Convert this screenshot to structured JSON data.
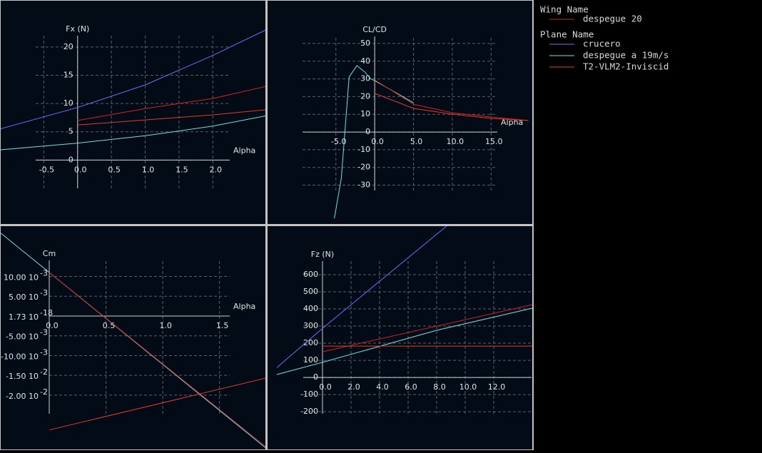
{
  "legend": {
    "groups": [
      {
        "title": "Wing Name",
        "items": [
          {
            "name": "despegue 20",
            "color": "#d42020"
          }
        ]
      },
      {
        "title": "Plane Name",
        "items": [
          {
            "name": "crucero",
            "color": "#6f6fff"
          },
          {
            "name": "despegue a 19m/s",
            "color": "#6fe2e2"
          },
          {
            "name": "T2-VLM2-Inviscid",
            "color": "#e33a2a"
          }
        ]
      }
    ]
  },
  "chart_data": [
    {
      "type": "line",
      "ylabel": "Fx (N)",
      "xlabel": "Alpha",
      "xlim": [
        -0.62,
        2.25
      ],
      "ylim": [
        -5,
        22
      ],
      "xticks": [
        -0.5,
        {
          "value": 0,
          "label": "0.0"
        },
        0.5,
        {
          "value": 1,
          "label": "1.0"
        },
        1.5,
        {
          "value": 2,
          "label": "2.0"
        }
      ],
      "yticks": [
        0,
        5,
        10,
        15,
        20
      ],
      "grid": true,
      "series": [
        {
          "color": "#6f6fff",
          "x": [
            -1.15,
            0,
            1,
            2,
            2.78
          ],
          "values": [
            5.5,
            9.3,
            13.3,
            18.5,
            23
          ]
        },
        {
          "color": "#6fe2e2",
          "x": [
            -1.15,
            0,
            1,
            2,
            2.78
          ],
          "values": [
            1.8,
            3.0,
            4.3,
            6.0,
            7.8
          ]
        },
        {
          "color": "#d42020",
          "x": [
            0,
            1,
            2,
            2.78
          ],
          "values": [
            7.0,
            9.1,
            10.9,
            13.0
          ]
        },
        {
          "color": "#e33a2a",
          "x": [
            0,
            2,
            2.78
          ],
          "values": [
            6.2,
            8.0,
            8.9
          ]
        }
      ]
    },
    {
      "type": "line",
      "ylabel": "CL/CD",
      "xlabel": "Alpha",
      "xlim": [
        -9.3,
        15.8
      ],
      "ylim": [
        -33,
        54
      ],
      "xticks": [
        {
          "value": -5,
          "label": "-5.0"
        },
        {
          "value": 0,
          "label": "0.0"
        },
        {
          "value": 5,
          "label": "5.0"
        },
        {
          "value": 10,
          "label": "10.0"
        },
        {
          "value": 15,
          "label": "15.0"
        }
      ],
      "yticks": [
        -30,
        -20,
        -10,
        0,
        10,
        20,
        30,
        40,
        50
      ],
      "grid": true,
      "series": [
        {
          "color": "#6fe2e2",
          "x": [
            -5.2,
            -4.3,
            -3.3,
            -2.3,
            -1.3,
            -0.5,
            0,
            5
          ],
          "values": [
            -48.8,
            -26,
            31,
            37.5,
            34,
            30,
            29,
            16.5
          ]
        },
        {
          "color": "#d42020",
          "x": [
            0,
            5,
            10,
            15,
            19.8
          ],
          "values": [
            29.4,
            15.7,
            10.9,
            8.5,
            6.5
          ]
        },
        {
          "color": "#e33a2a",
          "x": [
            0,
            5,
            10,
            15,
            19.8
          ],
          "values": [
            21.8,
            13.3,
            10.1,
            7.7,
            6.5
          ]
        }
      ]
    },
    {
      "type": "line",
      "ylabel": "Cm",
      "xlabel": "Alpha",
      "xlim": [
        0,
        1.59
      ],
      "ylim": [
        -0.0247,
        0.01405
      ],
      "xticks": [
        {
          "value": 0,
          "label": "0.0"
        },
        0.5,
        {
          "value": 1,
          "label": "1.0"
        },
        1.5
      ],
      "yticks": [
        {
          "value": 0.01,
          "label": "10.00 10",
          "exponent": "-3"
        },
        {
          "value": 0.005,
          "label": "5.00 10",
          "exponent": "-3"
        },
        {
          "value": 1.73e-18,
          "label": "1.73 10",
          "exponent": "-18"
        },
        {
          "value": -0.005,
          "label": "-5.00 10",
          "exponent": "-3"
        },
        {
          "value": -0.01,
          "label": "-10.00 10",
          "exponent": "-3"
        },
        {
          "value": -0.015,
          "label": "-1.50 10",
          "exponent": "-2"
        },
        {
          "value": -0.02,
          "label": "-2.00 10",
          "exponent": "-2"
        }
      ],
      "grid": true,
      "series": [
        {
          "color": "#6fe2e2",
          "x": [
            -0.434,
            1.906
          ],
          "values": [
            0.0211,
            -0.0333
          ]
        },
        {
          "color": "#d42020",
          "x": [
            0,
            1.906
          ],
          "values": [
            0.011,
            -0.033
          ]
        },
        {
          "color": "#e33a2a",
          "x": [
            0,
            1.906
          ],
          "values": [
            -0.0288,
            -0.0157
          ]
        }
      ]
    },
    {
      "type": "line",
      "ylabel": "Fz (N)",
      "xlabel": "Alpha",
      "xlim": [
        -1.35,
        14.65
      ],
      "ylim": [
        -212,
        679
      ],
      "xticks": [
        {
          "value": 0,
          "label": "0.0"
        },
        {
          "value": 2,
          "label": "2.0"
        },
        {
          "value": 4,
          "label": "4.0"
        },
        {
          "value": 6,
          "label": "6.0"
        },
        {
          "value": 8,
          "label": "8.0"
        },
        {
          "value": 10,
          "label": "10.0"
        },
        {
          "value": 12,
          "label": "12.0"
        }
      ],
      "yticks": [
        -200,
        -100,
        0,
        100,
        200,
        300,
        400,
        500,
        600
      ],
      "grid": true,
      "series": [
        {
          "color": "#6f6fff",
          "x": [
            -3.2,
            0,
            8.75
          ],
          "values": [
            58,
            287,
            887
          ]
        },
        {
          "color": "#6fe2e2",
          "x": [
            -3.2,
            0,
            8,
            14.7
          ],
          "values": [
            17,
            88,
            275,
            404
          ]
        },
        {
          "color": "#d42020",
          "x": [
            0,
            14.7
          ],
          "values": [
            150,
            425
          ]
        },
        {
          "color": "#e33a2a",
          "x": [
            0,
            14.7
          ],
          "values": [
            183,
            183
          ]
        }
      ]
    }
  ]
}
